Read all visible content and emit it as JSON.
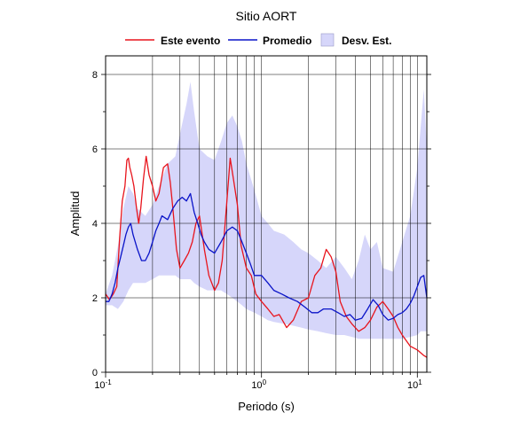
{
  "chart_data": {
    "type": "line",
    "title": "Sitio AORT",
    "xlabel": "Periodo (s)",
    "ylabel": "Amplitud",
    "x_scale": "log",
    "xlim": [
      0.1,
      11.5
    ],
    "ylim": [
      0,
      8.5
    ],
    "x_ticks": [
      {
        "value": 0.1,
        "base": "10",
        "exp": "-1"
      },
      {
        "value": 1,
        "base": "10",
        "exp": "0"
      },
      {
        "value": 10,
        "base": "10",
        "exp": "1"
      }
    ],
    "y_ticks": [
      "0",
      "2",
      "4",
      "6",
      "8"
    ],
    "y_tick_values": [
      0,
      2,
      4,
      6,
      8
    ],
    "grid": true,
    "legend_position": "top",
    "legend": [
      {
        "label": "Este evento",
        "kind": "line",
        "color": "#e8141c"
      },
      {
        "label": "Promedio",
        "kind": "line",
        "color": "#0a14c8"
      },
      {
        "label": "Desv. Est.",
        "kind": "patch",
        "color": "#d6d6fa"
      }
    ],
    "series": [
      {
        "name": "Este evento",
        "color": "#e8141c",
        "x": [
          0.1,
          0.106,
          0.112,
          0.118,
          0.123,
          0.128,
          0.133,
          0.137,
          0.14,
          0.143,
          0.147,
          0.152,
          0.158,
          0.163,
          0.168,
          0.175,
          0.182,
          0.19,
          0.2,
          0.21,
          0.22,
          0.235,
          0.25,
          0.26,
          0.27,
          0.285,
          0.3,
          0.32,
          0.34,
          0.36,
          0.38,
          0.4,
          0.43,
          0.46,
          0.5,
          0.53,
          0.56,
          0.6,
          0.63,
          0.66,
          0.7,
          0.74,
          0.8,
          0.86,
          0.92,
          1.0,
          1.1,
          1.2,
          1.3,
          1.45,
          1.6,
          1.8,
          2.0,
          2.2,
          2.4,
          2.6,
          2.8,
          3.0,
          3.2,
          3.5,
          3.8,
          4.2,
          4.6,
          5.0,
          5.5,
          6.0,
          6.5,
          7.0,
          7.5,
          8.0,
          9.0,
          10.0,
          11.0,
          11.5
        ],
        "y": [
          2.1,
          1.95,
          2.1,
          2.3,
          3.6,
          4.6,
          5.0,
          5.7,
          5.75,
          5.5,
          5.3,
          5.0,
          4.4,
          4.0,
          4.4,
          5.2,
          5.8,
          5.3,
          5.0,
          4.6,
          4.8,
          5.5,
          5.6,
          5.1,
          4.4,
          3.3,
          2.8,
          3.0,
          3.2,
          3.5,
          4.0,
          4.2,
          3.3,
          2.6,
          2.2,
          2.4,
          3.0,
          4.6,
          5.75,
          5.2,
          4.5,
          3.4,
          2.8,
          2.6,
          2.1,
          1.9,
          1.7,
          1.5,
          1.55,
          1.2,
          1.4,
          1.9,
          2.0,
          2.6,
          2.8,
          3.3,
          3.1,
          2.7,
          1.9,
          1.5,
          1.3,
          1.1,
          1.2,
          1.4,
          1.75,
          1.9,
          1.7,
          1.5,
          1.2,
          1.0,
          0.7,
          0.6,
          0.45,
          0.4
        ]
      },
      {
        "name": "Promedio",
        "color": "#0a14c8",
        "x": [
          0.1,
          0.105,
          0.11,
          0.115,
          0.12,
          0.125,
          0.13,
          0.135,
          0.14,
          0.145,
          0.15,
          0.16,
          0.17,
          0.18,
          0.19,
          0.2,
          0.21,
          0.22,
          0.23,
          0.25,
          0.27,
          0.29,
          0.31,
          0.33,
          0.35,
          0.37,
          0.39,
          0.41,
          0.43,
          0.46,
          0.5,
          0.55,
          0.6,
          0.65,
          0.7,
          0.75,
          0.8,
          0.85,
          0.9,
          1.0,
          1.1,
          1.2,
          1.35,
          1.5,
          1.7,
          1.9,
          2.1,
          2.3,
          2.5,
          2.8,
          3.1,
          3.4,
          3.7,
          4.0,
          4.4,
          4.8,
          5.2,
          5.6,
          6.0,
          6.5,
          7.0,
          7.5,
          8.0,
          8.5,
          9.0,
          9.5,
          10.0,
          10.5,
          11.0,
          11.5
        ],
        "y": [
          1.9,
          1.9,
          2.1,
          2.4,
          2.8,
          3.1,
          3.4,
          3.7,
          3.9,
          4.0,
          3.7,
          3.3,
          3.0,
          3.0,
          3.2,
          3.5,
          3.8,
          4.0,
          4.2,
          4.1,
          4.4,
          4.6,
          4.7,
          4.6,
          4.8,
          4.3,
          4.0,
          3.7,
          3.5,
          3.3,
          3.2,
          3.5,
          3.8,
          3.9,
          3.8,
          3.5,
          3.2,
          2.9,
          2.6,
          2.6,
          2.4,
          2.2,
          2.1,
          2.0,
          1.9,
          1.75,
          1.6,
          1.6,
          1.7,
          1.7,
          1.6,
          1.5,
          1.55,
          1.4,
          1.45,
          1.7,
          1.95,
          1.8,
          1.55,
          1.4,
          1.45,
          1.55,
          1.6,
          1.7,
          1.85,
          2.05,
          2.3,
          2.55,
          2.6,
          2.0
        ]
      }
    ],
    "band": {
      "name": "Desv. Est.",
      "color": "#d6d6fa",
      "x": [
        0.1,
        0.11,
        0.12,
        0.13,
        0.14,
        0.15,
        0.16,
        0.18,
        0.2,
        0.22,
        0.25,
        0.28,
        0.3,
        0.33,
        0.35,
        0.37,
        0.4,
        0.45,
        0.5,
        0.55,
        0.6,
        0.65,
        0.7,
        0.75,
        0.8,
        0.9,
        1.0,
        1.1,
        1.2,
        1.4,
        1.6,
        1.8,
        2.0,
        2.3,
        2.6,
        3.0,
        3.4,
        3.8,
        4.2,
        4.6,
        5.0,
        5.5,
        6.0,
        7.0,
        8.0,
        9.0,
        10.0,
        10.5,
        11.0,
        11.5
      ],
      "upper": [
        2.1,
        2.6,
        3.4,
        4.4,
        5.0,
        4.8,
        4.4,
        4.2,
        4.5,
        5.0,
        5.6,
        5.8,
        6.4,
        7.2,
        7.8,
        7.0,
        6.0,
        5.8,
        5.7,
        6.2,
        6.7,
        6.9,
        6.6,
        6.2,
        5.6,
        4.9,
        4.2,
        4.0,
        3.8,
        3.7,
        3.5,
        3.3,
        3.2,
        3.0,
        2.8,
        3.1,
        2.8,
        2.5,
        3.0,
        3.7,
        3.3,
        3.5,
        2.8,
        2.7,
        3.5,
        4.2,
        5.5,
        6.6,
        7.6,
        6.0
      ],
      "lower": [
        1.8,
        1.8,
        1.7,
        1.9,
        2.2,
        2.4,
        2.4,
        2.4,
        2.5,
        2.6,
        2.6,
        2.6,
        2.5,
        2.5,
        2.5,
        2.4,
        2.3,
        2.2,
        2.2,
        2.2,
        2.1,
        2.0,
        1.9,
        1.8,
        1.7,
        1.6,
        1.5,
        1.4,
        1.35,
        1.3,
        1.25,
        1.2,
        1.15,
        1.1,
        1.05,
        1.0,
        1.0,
        0.95,
        0.9,
        0.9,
        0.9,
        0.9,
        0.9,
        0.9,
        0.9,
        0.95,
        1.0,
        1.1,
        1.1,
        1.1
      ]
    }
  }
}
